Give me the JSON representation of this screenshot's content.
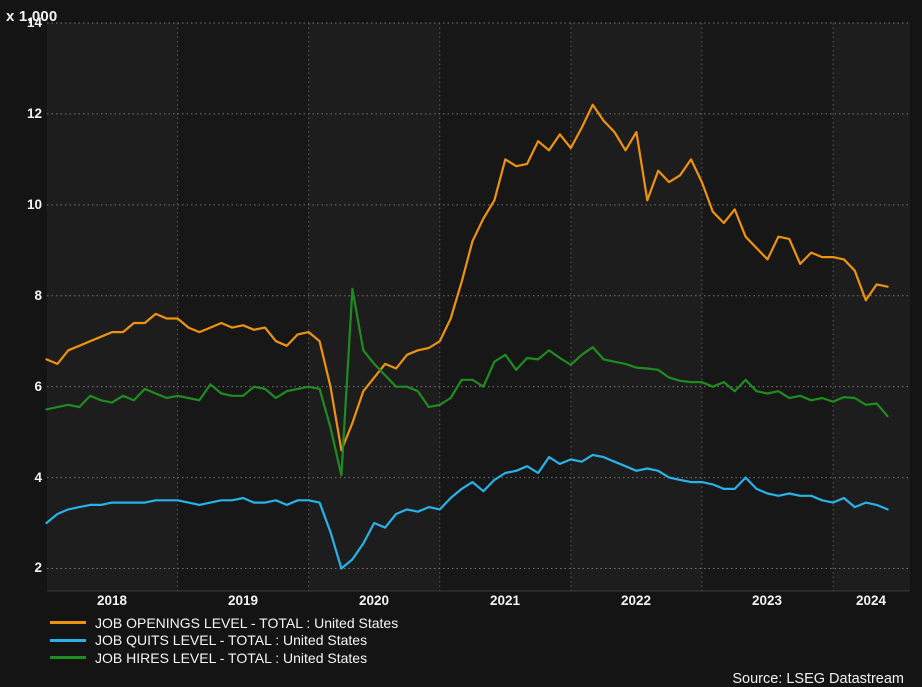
{
  "scale_label": "x 1,000",
  "source_label": "Source: LSEG Datastream",
  "axes": {
    "y_ticks": [
      "14",
      "12",
      "10",
      "8",
      "6",
      "4",
      "2"
    ],
    "x_ticks": [
      "2018",
      "2019",
      "2020",
      "2021",
      "2022",
      "2023",
      "2024"
    ]
  },
  "legend": {
    "items": [
      {
        "label": "JOB OPENINGS LEVEL - TOTAL : United States",
        "color": "#ee9311"
      },
      {
        "label": "JOB QUITS LEVEL - TOTAL : United States",
        "color": "#29b2e8"
      },
      {
        "label": "JOB HIRES LEVEL - TOTAL : United States",
        "color": "#1f8c1f"
      }
    ]
  },
  "chart_data": {
    "type": "line",
    "title": "",
    "scale_note": "x 1,000",
    "x_interval": "monthly",
    "x_start": "2018-01",
    "x_end": "2024-06",
    "x_tick_labels": [
      "2018",
      "2019",
      "2020",
      "2021",
      "2022",
      "2023",
      "2024"
    ],
    "ylim": [
      2,
      14
    ],
    "y_gridlines": [
      2,
      4,
      6,
      8,
      10,
      12,
      14
    ],
    "grid": "dotted",
    "legend_position": "bottom-left",
    "series": [
      {
        "name": "JOB OPENINGS LEVEL - TOTAL : United States",
        "color": "#ee9311",
        "values": [
          6.6,
          6.5,
          6.8,
          6.9,
          7.0,
          7.1,
          7.2,
          7.2,
          7.4,
          7.4,
          7.6,
          7.5,
          7.5,
          7.3,
          7.2,
          7.3,
          7.4,
          7.3,
          7.35,
          7.25,
          7.3,
          7.0,
          6.9,
          7.15,
          7.2,
          7.0,
          6.0,
          4.6,
          5.2,
          5.9,
          6.2,
          6.5,
          6.4,
          6.7,
          6.8,
          6.85,
          7.0,
          7.5,
          8.3,
          9.2,
          9.7,
          10.1,
          11.0,
          10.85,
          10.9,
          11.4,
          11.2,
          11.55,
          11.25,
          11.7,
          12.2,
          11.85,
          11.6,
          11.2,
          11.6,
          10.1,
          10.75,
          10.5,
          10.65,
          11.0,
          10.5,
          9.85,
          9.6,
          9.9,
          9.3,
          9.05,
          8.8,
          9.3,
          9.25,
          8.7,
          8.95,
          8.85,
          8.85,
          8.8,
          8.55,
          7.9,
          8.25,
          8.2
        ]
      },
      {
        "name": "JOB QUITS LEVEL - TOTAL : United States",
        "color": "#29b2e8",
        "values": [
          3.0,
          3.2,
          3.3,
          3.35,
          3.4,
          3.4,
          3.45,
          3.45,
          3.45,
          3.45,
          3.5,
          3.5,
          3.5,
          3.45,
          3.4,
          3.45,
          3.5,
          3.5,
          3.55,
          3.45,
          3.45,
          3.5,
          3.4,
          3.5,
          3.5,
          3.45,
          2.8,
          2.0,
          2.2,
          2.55,
          3.0,
          2.9,
          3.2,
          3.3,
          3.25,
          3.35,
          3.3,
          3.55,
          3.75,
          3.9,
          3.7,
          3.95,
          4.1,
          4.15,
          4.25,
          4.1,
          4.45,
          4.3,
          4.4,
          4.35,
          4.5,
          4.45,
          4.35,
          4.25,
          4.15,
          4.2,
          4.15,
          4.0,
          3.95,
          3.9,
          3.9,
          3.85,
          3.75,
          3.75,
          4.0,
          3.75,
          3.65,
          3.6,
          3.65,
          3.6,
          3.6,
          3.5,
          3.45,
          3.55,
          3.35,
          3.45,
          3.4,
          3.3
        ]
      },
      {
        "name": "JOB HIRES LEVEL - TOTAL : United States",
        "color": "#1f8c1f",
        "values": [
          5.5,
          5.55,
          5.6,
          5.55,
          5.8,
          5.7,
          5.65,
          5.8,
          5.7,
          5.95,
          5.85,
          5.75,
          5.8,
          5.75,
          5.7,
          6.05,
          5.85,
          5.8,
          5.8,
          6.0,
          5.95,
          5.75,
          5.9,
          5.95,
          6.0,
          5.95,
          5.1,
          4.05,
          8.15,
          6.8,
          6.5,
          6.25,
          6.0,
          6.0,
          5.9,
          5.55,
          5.6,
          5.75,
          6.15,
          6.15,
          6.0,
          6.55,
          6.7,
          6.37,
          6.63,
          6.6,
          6.8,
          6.63,
          6.48,
          6.7,
          6.87,
          6.6,
          6.55,
          6.5,
          6.42,
          6.4,
          6.37,
          6.2,
          6.13,
          6.1,
          6.1,
          6.0,
          6.1,
          5.9,
          6.15,
          5.9,
          5.85,
          5.9,
          5.75,
          5.8,
          5.7,
          5.75,
          5.67,
          5.77,
          5.75,
          5.6,
          5.63,
          5.35
        ]
      }
    ]
  }
}
